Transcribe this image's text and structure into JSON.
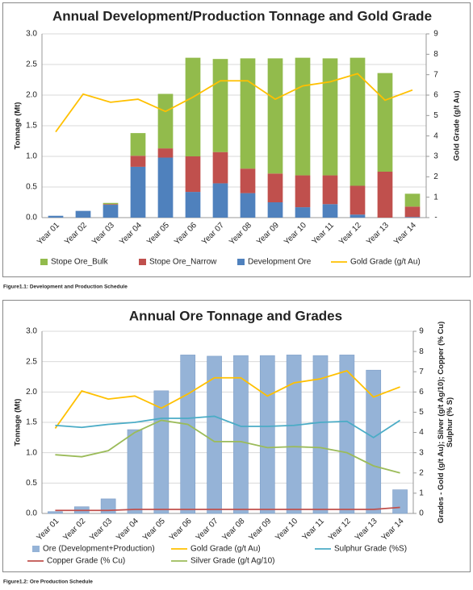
{
  "chart_data": [
    {
      "type": "bar",
      "stacked": true,
      "title": "Annual Development/Production Tonnage and Gold Grade",
      "y_label": "Tonnage (Mt)",
      "y2_label": [
        "Gold Grade (g/t Au)"
      ],
      "categories": [
        "Year 01",
        "Year 02",
        "Year 03",
        "Year 04",
        "Year 05",
        "Year 06",
        "Year 07",
        "Year 08",
        "Year 09",
        "Year 10",
        "Year 11",
        "Year 12",
        "Year 13",
        "Year 14"
      ],
      "series": [
        {
          "name": "Stope Ore_Bulk",
          "type": "bar",
          "color": "#92bb4c",
          "values": [
            0,
            0,
            0.02,
            0.37,
            0.89,
            1.61,
            1.52,
            1.8,
            1.88,
            1.92,
            1.91,
            2.09,
            1.61,
            0.21
          ]
        },
        {
          "name": "Stope Ore_Narrow",
          "type": "bar",
          "color": "#c0504d",
          "values": [
            0,
            0,
            0.01,
            0.18,
            0.15,
            0.58,
            0.51,
            0.4,
            0.47,
            0.52,
            0.47,
            0.47,
            0.75,
            0.17
          ]
        },
        {
          "name": "Development Ore",
          "type": "bar",
          "color": "#4f81bd",
          "values": [
            0.03,
            0.11,
            0.21,
            0.83,
            0.98,
            0.42,
            0.56,
            0.4,
            0.25,
            0.17,
            0.22,
            0.05,
            0,
            0.01
          ]
        },
        {
          "name": "Gold Grade (g/t Au)",
          "type": "line",
          "axis": "y2",
          "color": "#ffc000",
          "values": [
            4.2,
            6.05,
            5.65,
            5.8,
            5.2,
            5.9,
            6.7,
            6.7,
            5.8,
            6.45,
            6.65,
            7.05,
            5.75,
            6.25
          ]
        }
      ],
      "ylim": [
        0,
        3
      ],
      "yticks": [
        {
          "value": 0,
          "label": "0.0"
        },
        0.5,
        {
          "value": 1,
          "label": "1.0"
        },
        1.5,
        {
          "value": 2,
          "label": "2.0"
        },
        2.5,
        {
          "value": 3,
          "label": "3.0"
        }
      ],
      "y2lim": [
        0,
        9
      ],
      "y2ticks": [
        {
          "value": 0,
          "label": "-"
        },
        1,
        2,
        3,
        4,
        5,
        6,
        7,
        8,
        9
      ],
      "grid": true
    },
    {
      "type": "bar",
      "stacked": false,
      "title": "Annual Ore Tonnage and Grades",
      "y_label": "Tonnage (Mt)",
      "y2_label": [
        "Grades - Gold (g/t Au); Silver (g/t Ag/10); Copper (% Cu)",
        "Sulphur (% S)"
      ],
      "categories": [
        "Year 01",
        "Year 02",
        "Year 03",
        "Year 04",
        "Year 05",
        "Year 06",
        "Year 07",
        "Year 08",
        "Year 09",
        "Year 10",
        "Year 11",
        "Year 12",
        "Year 13",
        "Year 14"
      ],
      "series": [
        {
          "name": "Ore (Development+Production)",
          "type": "bar",
          "color": "#95b3d7",
          "values": [
            0.03,
            0.11,
            0.24,
            1.38,
            2.02,
            2.61,
            2.59,
            2.6,
            2.6,
            2.61,
            2.6,
            2.61,
            2.36,
            0.39
          ]
        },
        {
          "name": "Gold Grade (g/t Au)",
          "type": "line",
          "axis": "y2",
          "color": "#ffc000",
          "values": [
            4.2,
            6.05,
            5.65,
            5.8,
            5.2,
            5.9,
            6.7,
            6.7,
            5.8,
            6.45,
            6.65,
            7.05,
            5.75,
            6.25
          ]
        },
        {
          "name": "Sulphur Grade (%S)",
          "type": "line",
          "axis": "y2",
          "color": "#4bacc6",
          "values": [
            4.35,
            4.25,
            4.4,
            4.5,
            4.7,
            4.7,
            4.8,
            4.3,
            4.3,
            4.35,
            4.5,
            4.55,
            3.75,
            4.6
          ]
        },
        {
          "name": "Copper Grade (% Cu)",
          "type": "line",
          "axis": "y2",
          "color": "#c0504d",
          "values": [
            0.15,
            0.15,
            0.15,
            0.2,
            0.2,
            0.2,
            0.2,
            0.2,
            0.2,
            0.2,
            0.2,
            0.2,
            0.2,
            0.3
          ]
        },
        {
          "name": "Silver Grade (g/t Ag/10)",
          "type": "line",
          "axis": "y2",
          "color": "#9bbb59",
          "values": [
            2.9,
            2.8,
            3.1,
            4.0,
            4.6,
            4.4,
            3.55,
            3.55,
            3.25,
            3.3,
            3.25,
            3.0,
            2.35,
            2.0
          ]
        }
      ],
      "ylim": [
        0,
        3
      ],
      "yticks": [
        {
          "value": 0,
          "label": "0.0"
        },
        0.5,
        {
          "value": 1,
          "label": "1.0"
        },
        1.5,
        {
          "value": 2,
          "label": "2.0"
        },
        2.5,
        {
          "value": 3,
          "label": "3.0"
        }
      ],
      "y2lim": [
        0,
        9
      ],
      "y2ticks": [
        0,
        1,
        2,
        3,
        4,
        5,
        6,
        7,
        8,
        9
      ],
      "grid": true
    }
  ],
  "captions": [
    "Figure1.1: Development and Production Schedule",
    "Figure1.2: Ore Production Schedule"
  ]
}
